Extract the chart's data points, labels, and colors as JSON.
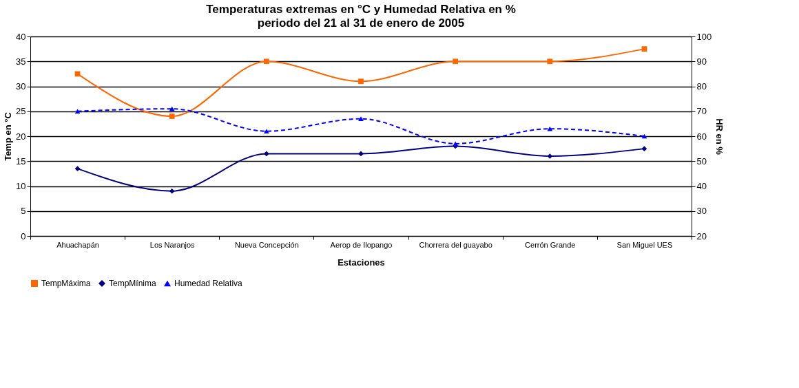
{
  "chart_data": {
    "type": "line",
    "title": "Temperaturas extremas en °C  y Humedad Relativa en %",
    "subtitle": "periodo del 21 al 31 de enero de 2005",
    "xlabel": "Estaciones",
    "ylabel": "Temp en °C",
    "y2label": "HR en %",
    "categories": [
      "Ahuachapán",
      "Los Naranjos",
      "Nueva Concepción",
      "Aerop de Ilopango",
      "Chorrera del guayabo",
      "Cerrón Grande",
      "San Miguel UES"
    ],
    "series": [
      {
        "name": "TempMáxima",
        "color": "#ff6600",
        "marker": "square",
        "line_style": "solid",
        "values": [
          32.5,
          24,
          35,
          31,
          35,
          35,
          37.5
        ]
      },
      {
        "name": "TempMínima",
        "color": "#000080",
        "marker": "diamond",
        "line_style": "solid",
        "values": [
          13.5,
          9,
          16.5,
          16.5,
          18,
          16,
          17.5
        ]
      },
      {
        "name": "Humedad Relativa",
        "color": "#0000ff",
        "marker": "triangle",
        "line_style": "dashed",
        "axis": "y2",
        "values": [
          70,
          71,
          62,
          67,
          57,
          63,
          60
        ]
      }
    ],
    "ylim": [
      0,
      40
    ],
    "yticks": [
      0,
      5,
      10,
      15,
      20,
      25,
      30,
      35,
      40
    ],
    "y2lim": [
      20,
      100
    ],
    "y2ticks": [
      20,
      30,
      40,
      50,
      60,
      70,
      80,
      90,
      100
    ],
    "grid": "y",
    "legend": "bottom"
  }
}
